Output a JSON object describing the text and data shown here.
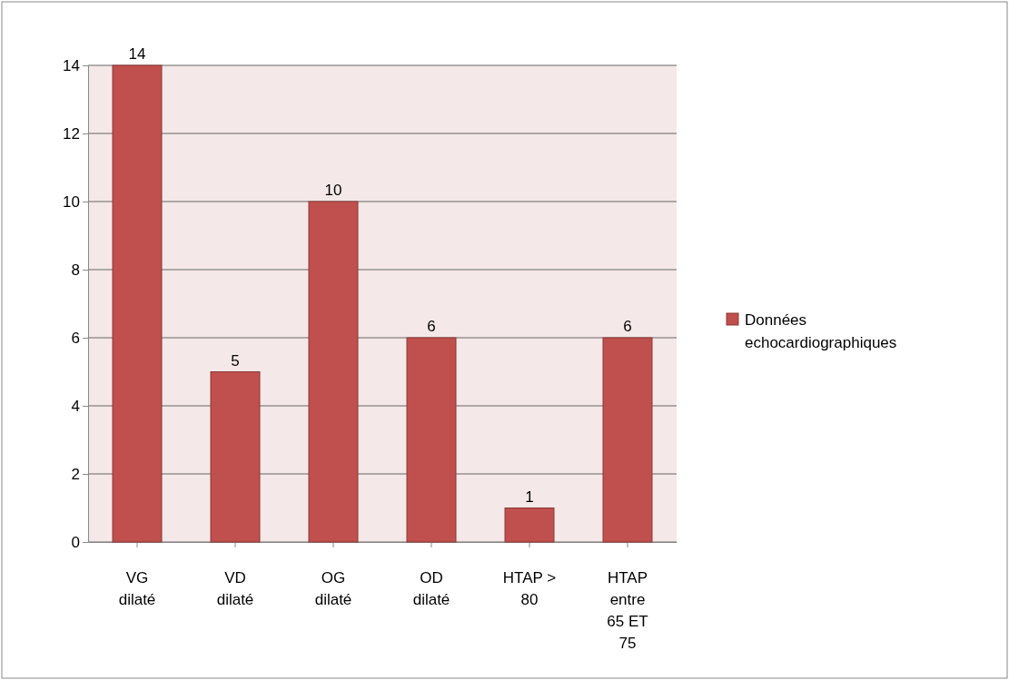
{
  "chart_data": {
    "type": "bar",
    "categories": [
      "VG dilaté",
      "VD dilaté",
      "OG dilaté",
      "OD dilaté",
      "HTAP > 80",
      "HTAP entre 65 ET 75"
    ],
    "series": [
      {
        "name": "Données echocardiographiques",
        "color": "#c0504d",
        "values": [
          14,
          5,
          10,
          6,
          1,
          6
        ]
      }
    ],
    "ylim": [
      0,
      14
    ],
    "yticks": [
      0,
      2,
      4,
      6,
      8,
      10,
      12,
      14
    ],
    "grid": "y",
    "legend": "right",
    "data_labels": true
  }
}
